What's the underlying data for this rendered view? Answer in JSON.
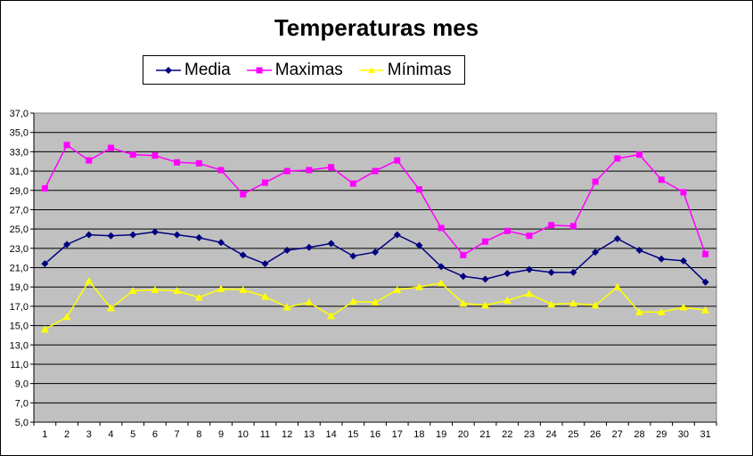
{
  "chart_data": {
    "type": "line",
    "title": "Temperaturas mes",
    "xlabel": "",
    "ylabel": "",
    "x": [
      "1",
      "2",
      "3",
      "4",
      "5",
      "6",
      "7",
      "8",
      "9",
      "10",
      "11",
      "12",
      "13",
      "14",
      "15",
      "16",
      "17",
      "18",
      "19",
      "20",
      "21",
      "22",
      "23",
      "24",
      "25",
      "26",
      "27",
      "28",
      "29",
      "30",
      "31"
    ],
    "y_ticks": [
      "5,0",
      "7,0",
      "9,0",
      "11,0",
      "13,0",
      "15,0",
      "17,0",
      "19,0",
      "21,0",
      "23,0",
      "25,0",
      "27,0",
      "29,0",
      "31,0",
      "33,0",
      "35,0",
      "37,0"
    ],
    "ylim": [
      5,
      37
    ],
    "grid": true,
    "legend_position": "top",
    "plot_background": "#C0C0C0",
    "series": [
      {
        "name": "Media",
        "color": "#000080",
        "marker": "diamond",
        "values": [
          21.4,
          23.4,
          24.4,
          24.3,
          24.4,
          24.7,
          24.4,
          24.1,
          23.6,
          22.3,
          21.4,
          22.8,
          23.1,
          23.5,
          22.2,
          22.6,
          24.4,
          23.3,
          21.1,
          20.1,
          19.8,
          20.4,
          20.8,
          20.5,
          20.5,
          22.6,
          24.0,
          22.8,
          21.9,
          21.7,
          19.5
        ]
      },
      {
        "name": "Maximas",
        "color": "#FF00FF",
        "marker": "square",
        "values": [
          29.2,
          33.7,
          32.1,
          33.4,
          32.7,
          32.6,
          31.9,
          31.8,
          31.1,
          28.6,
          29.8,
          31.0,
          31.1,
          31.4,
          29.7,
          31.0,
          32.1,
          29.1,
          25.1,
          22.3,
          23.7,
          24.8,
          24.3,
          25.4,
          25.3,
          29.9,
          32.3,
          32.7,
          30.1,
          28.8,
          22.4
        ]
      },
      {
        "name": "Mínimas",
        "color": "#FFFF00",
        "marker": "triangle",
        "values": [
          14.6,
          15.9,
          19.6,
          16.8,
          18.6,
          18.7,
          18.6,
          17.9,
          18.8,
          18.7,
          18.0,
          16.9,
          17.4,
          16.0,
          17.5,
          17.4,
          18.7,
          19.0,
          19.4,
          17.3,
          17.1,
          17.6,
          18.3,
          17.2,
          17.3,
          17.1,
          19.0,
          16.4,
          16.4,
          16.9,
          16.6
        ]
      }
    ]
  }
}
